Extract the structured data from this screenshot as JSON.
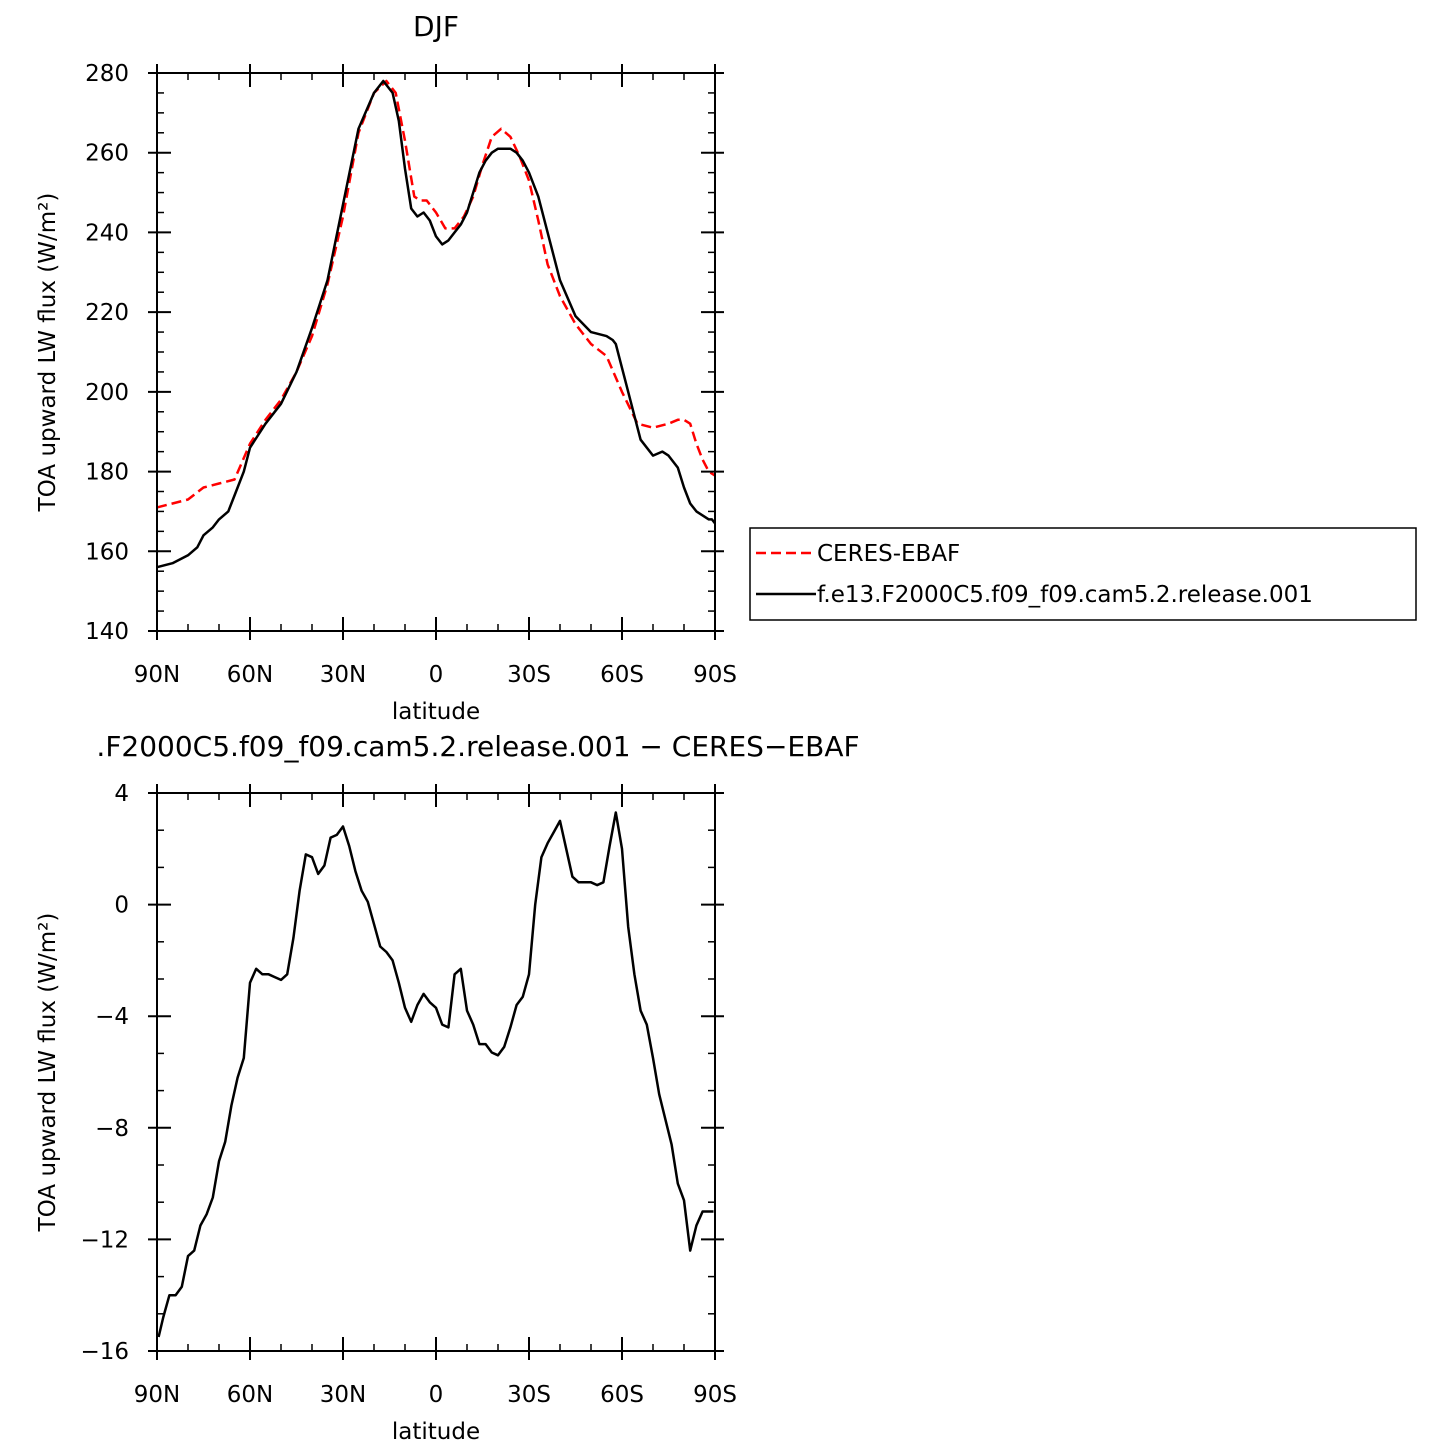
{
  "chart_data": [
    {
      "type": "line",
      "title": "DJF",
      "xlabel": "latitude",
      "ylabel": "TOA upward LW flux (W/m²)",
      "xlim": [
        90,
        -90
      ],
      "ylim": [
        140,
        280
      ],
      "x_ticks": [
        {
          "value": 90,
          "label": "90N"
        },
        {
          "value": 60,
          "label": "60N"
        },
        {
          "value": 30,
          "label": "30N"
        },
        {
          "value": 0,
          "label": "0"
        },
        {
          "value": -30,
          "label": "30S"
        },
        {
          "value": -60,
          "label": "60S"
        },
        {
          "value": -90,
          "label": "90S"
        }
      ],
      "y_ticks": [
        {
          "value": 140,
          "label": "140"
        },
        {
          "value": 160,
          "label": "160"
        },
        {
          "value": 180,
          "label": "180"
        },
        {
          "value": 200,
          "label": "200"
        },
        {
          "value": 220,
          "label": "220"
        },
        {
          "value": 240,
          "label": "240"
        },
        {
          "value": 260,
          "label": "260"
        },
        {
          "value": 280,
          "label": "280"
        }
      ],
      "legend_position": "right",
      "series": [
        {
          "name": "CERES-EBAF",
          "color": "#ff0000",
          "dash": "dashed",
          "x": [
            90,
            85,
            80,
            75,
            70,
            65,
            60,
            55,
            50,
            45,
            40,
            35,
            30,
            25,
            20,
            16,
            13,
            10,
            7,
            5,
            3,
            0,
            -3,
            -6,
            -9,
            -12,
            -15,
            -18,
            -21,
            -24,
            -27,
            -30,
            -33,
            -36,
            -40,
            -45,
            -50,
            -55,
            -60,
            -65,
            -70,
            -75,
            -78,
            -80,
            -82,
            -84,
            -86,
            -88,
            -90
          ],
          "y": [
            171,
            172,
            173,
            176,
            177,
            178,
            187,
            193,
            198,
            205,
            214,
            227,
            244,
            265,
            275,
            278,
            275,
            263,
            249,
            248,
            248,
            245,
            241,
            241,
            244,
            249,
            257,
            264,
            266,
            264,
            259,
            253,
            243,
            232,
            224,
            217,
            212,
            209,
            200,
            192,
            191,
            192,
            193,
            193,
            192,
            187,
            183,
            180,
            179
          ]
        },
        {
          "name": "f.e13.F2000C5.f09_f09.cam5.2.release.001",
          "color": "#000000",
          "dash": "solid",
          "x": [
            90,
            85,
            80,
            77,
            75,
            72,
            70,
            67,
            65,
            62,
            60,
            55,
            50,
            45,
            40,
            35,
            30,
            25,
            20,
            17,
            14,
            12,
            10,
            8,
            6,
            4,
            2,
            0,
            -2,
            -4,
            -6,
            -8,
            -10,
            -12,
            -14,
            -16,
            -18,
            -20,
            -22,
            -24,
            -26,
            -28,
            -30,
            -33,
            -36,
            -40,
            -45,
            -50,
            -55,
            -57,
            -58,
            -60,
            -63,
            -66,
            -70,
            -73,
            -75,
            -78,
            -80,
            -82,
            -84,
            -86,
            -88,
            -89,
            -90
          ],
          "y": [
            156,
            157,
            159,
            161,
            164,
            166,
            168,
            170,
            174,
            180,
            186,
            192,
            197,
            205,
            216,
            228,
            247,
            266,
            275,
            278,
            275,
            268,
            256,
            246,
            244,
            245,
            243,
            239,
            237,
            238,
            240,
            242,
            245,
            250,
            255,
            258,
            260,
            261,
            261,
            261,
            260,
            258,
            255,
            249,
            240,
            228,
            219,
            215,
            214,
            213,
            212,
            206,
            197,
            188,
            184,
            185,
            184,
            181,
            176,
            172,
            170,
            169,
            168,
            168,
            167
          ]
        }
      ]
    },
    {
      "type": "line",
      "title": ".F2000C5.f09_f09.cam5.2.release.001 − CERES−EBAF",
      "xlabel": "latitude",
      "ylabel": "TOA upward LW flux (W/m²)",
      "xlim": [
        90,
        -90
      ],
      "ylim": [
        -16,
        4
      ],
      "x_ticks": [
        {
          "value": 90,
          "label": "90N"
        },
        {
          "value": 60,
          "label": "60N"
        },
        {
          "value": 30,
          "label": "30N"
        },
        {
          "value": 0,
          "label": "0"
        },
        {
          "value": -30,
          "label": "30S"
        },
        {
          "value": -60,
          "label": "60S"
        },
        {
          "value": -90,
          "label": "90S"
        }
      ],
      "y_ticks": [
        {
          "value": -16,
          "label": "−16"
        },
        {
          "value": -12,
          "label": "−12"
        },
        {
          "value": -8,
          "label": "−8"
        },
        {
          "value": -4,
          "label": "−4"
        },
        {
          "value": 0,
          "label": "0"
        },
        {
          "value": 4,
          "label": "4"
        }
      ],
      "series": [
        {
          "color": "#000000",
          "x": [
            89.5,
            88,
            86,
            84,
            82,
            80,
            78,
            76,
            74,
            72,
            70,
            68,
            66,
            64,
            62,
            60,
            58,
            56,
            54,
            52,
            50,
            48,
            46,
            44,
            42,
            40,
            38,
            36,
            34,
            32,
            30,
            28,
            26,
            24,
            22,
            20,
            18,
            16,
            14,
            12,
            10,
            8,
            6,
            4,
            2,
            0,
            -2,
            -4,
            -6,
            -8,
            -10,
            -12,
            -14,
            -16,
            -18,
            -20,
            -22,
            -24,
            -26,
            -28,
            -30,
            -32,
            -34,
            -36,
            -38,
            -40,
            -42,
            -44,
            -46,
            -48,
            -50,
            -52,
            -54,
            -56,
            -58,
            -60,
            -62,
            -64,
            -66,
            -68,
            -70,
            -72,
            -74,
            -76,
            -78,
            -80,
            -82,
            -84,
            -86,
            -88,
            -89.5
          ],
          "y": [
            -15.5,
            -14.8,
            -14,
            -14,
            -13.7,
            -12.6,
            -12.4,
            -11.5,
            -11.1,
            -10.5,
            -9.2,
            -8.5,
            -7.2,
            -6.2,
            -5.5,
            -2.8,
            -2.3,
            -2.5,
            -2.5,
            -2.6,
            -2.7,
            -2.5,
            -1.2,
            0.5,
            1.8,
            1.7,
            1.1,
            1.4,
            2.4,
            2.5,
            2.8,
            2.1,
            1.2,
            0.5,
            0.1,
            -0.7,
            -1.5,
            -1.7,
            -2.0,
            -2.8,
            -3.7,
            -4.2,
            -3.6,
            -3.2,
            -3.5,
            -3.7,
            -4.3,
            -4.4,
            -2.5,
            -2.3,
            -3.8,
            -4.3,
            -5.0,
            -5.0,
            -5.3,
            -5.4,
            -5.1,
            -4.4,
            -3.6,
            -3.3,
            -2.5,
            0,
            1.7,
            2.2,
            2.6,
            3.0,
            2.0,
            1.0,
            0.8,
            0.8,
            0.8,
            0.7,
            0.8,
            2.1,
            3.3,
            2.0,
            -0.8,
            -2.5,
            -3.8,
            -4.3,
            -5.5,
            -6.8,
            -7.7,
            -8.6,
            -10.0,
            -10.6,
            -12.4,
            -11.5,
            -11.0,
            -11.0,
            -11.0
          ]
        }
      ]
    }
  ]
}
